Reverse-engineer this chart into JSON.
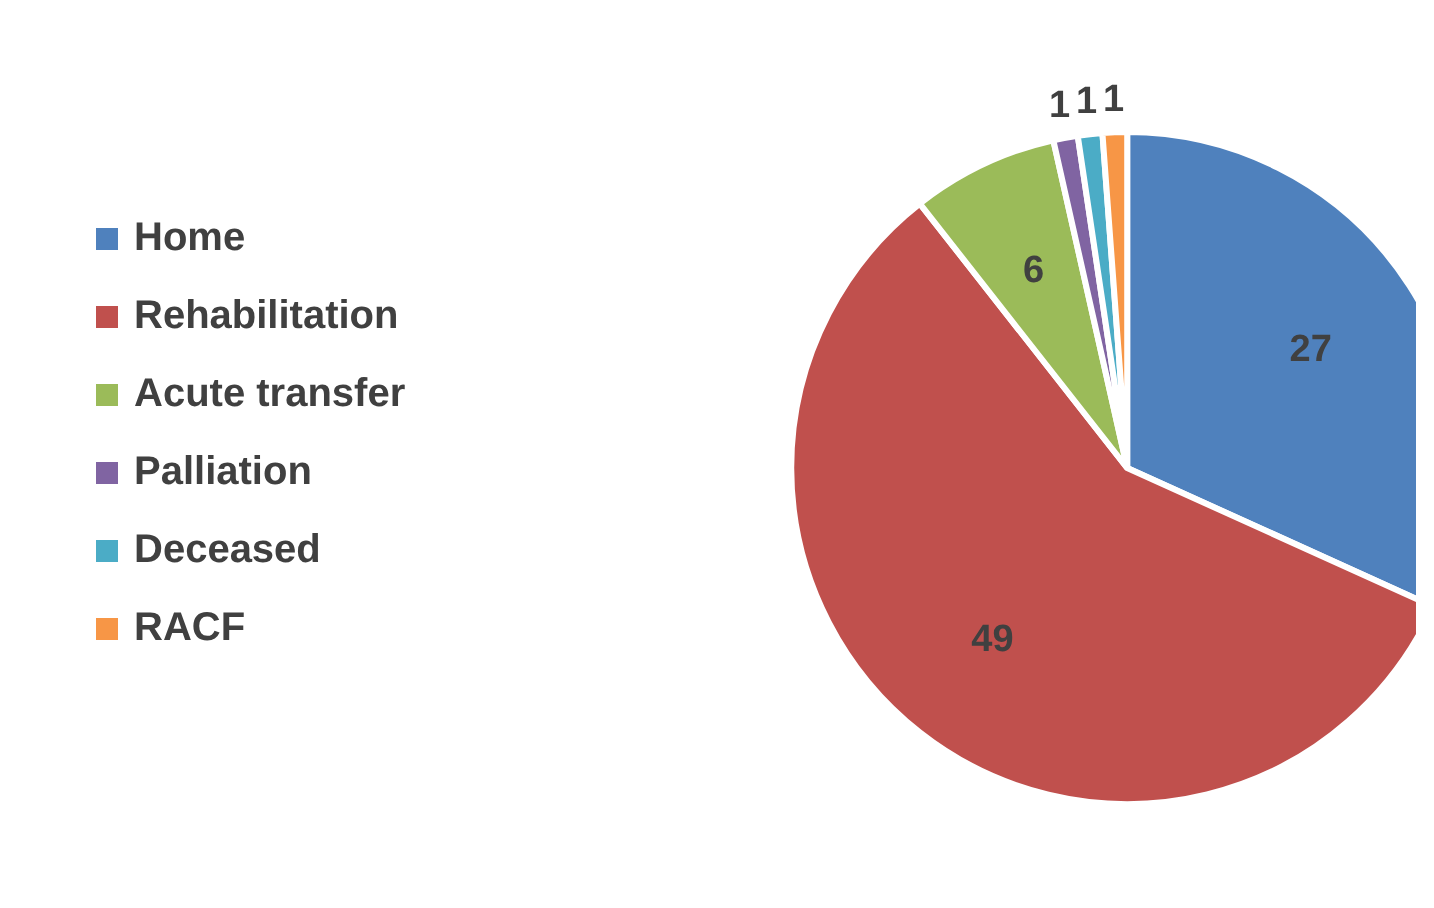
{
  "chart_data": {
    "type": "pie",
    "categories": [
      "Home",
      "Rehabilitation",
      "Acute transfer",
      "Palliation",
      "Deceased",
      "RACF"
    ],
    "values": [
      27,
      49,
      6,
      1,
      1,
      1
    ],
    "colors": [
      "#4f81bd",
      "#c0504d",
      "#9bbb59",
      "#8064a2",
      "#4bacc6",
      "#f79646"
    ],
    "data_labels": true,
    "legend": "left"
  }
}
